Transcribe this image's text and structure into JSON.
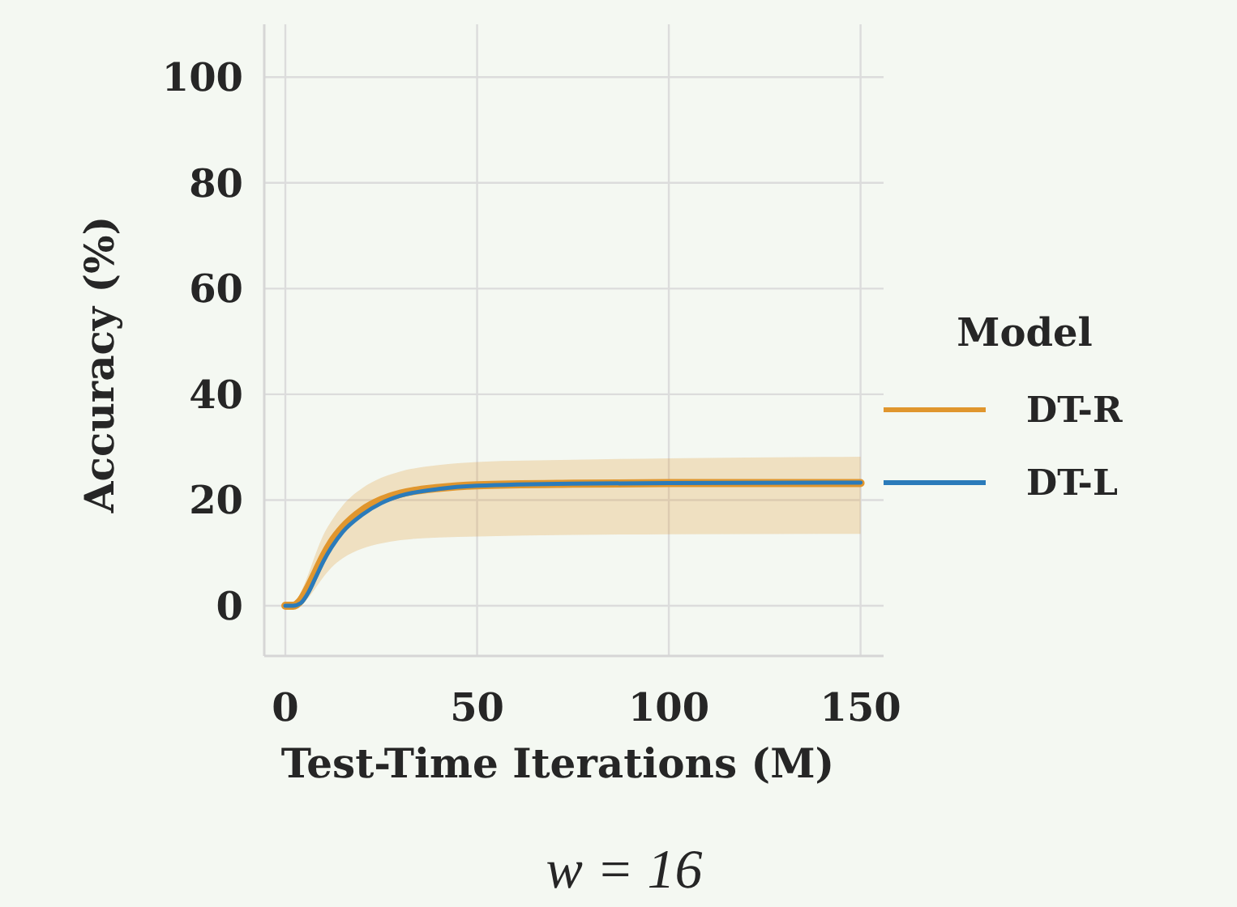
{
  "chart_data": {
    "type": "line",
    "title": "w = 16",
    "xlabel": "Test-Time Iterations (M)",
    "ylabel": "Accuracy (%)",
    "legend_title": "Model",
    "legend": "right",
    "grid": true,
    "line_style": "solid",
    "marker": "none",
    "xlim": [
      -5.5,
      156
    ],
    "ylim": [
      -9.5,
      110
    ],
    "xticks": [
      0,
      50,
      100,
      150
    ],
    "yticks": [
      0,
      20,
      40,
      60,
      80,
      100
    ],
    "series": [
      {
        "name": "DT-R",
        "color": "#e0962e",
        "x": [
          0,
          2,
          4,
          6,
          8,
          10,
          12,
          15,
          20,
          25,
          30,
          40,
          50,
          75,
          100,
          150
        ],
        "values": [
          0,
          0,
          1,
          3.5,
          6.5,
          9.5,
          12,
          14.8,
          18,
          20,
          21.2,
          22.3,
          22.8,
          23.1,
          23.2,
          23.2
        ],
        "lower": [
          0,
          0,
          0.3,
          1.5,
          3.5,
          5.5,
          7.2,
          9,
          10.8,
          11.8,
          12.4,
          12.9,
          13.1,
          13.4,
          13.5,
          13.6
        ],
        "upper": [
          0,
          0.3,
          2.5,
          6,
          10,
          13.5,
          16,
          19,
          22.2,
          24.2,
          25.4,
          26.6,
          27.2,
          27.6,
          27.9,
          28.2
        ]
      },
      {
        "name": "DT-L",
        "color": "#2b7bba",
        "x": [
          0,
          2,
          4,
          6,
          8,
          10,
          12,
          15,
          20,
          25,
          30,
          40,
          50,
          75,
          100,
          150
        ],
        "values": [
          0,
          0,
          0.5,
          2.5,
          5.5,
          8.5,
          11,
          14,
          17.2,
          19.4,
          20.8,
          22.1,
          22.7,
          23.1,
          23.2,
          23.3
        ]
      }
    ]
  }
}
